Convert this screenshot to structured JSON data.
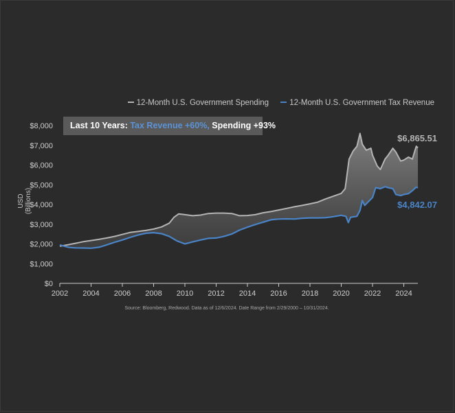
{
  "chart_data": {
    "type": "line",
    "title": "",
    "xlabel": "",
    "ylabel": "USD (Billions)",
    "xlim": [
      2002,
      2024.9
    ],
    "ylim": [
      0,
      8000
    ],
    "x_ticks": [
      "2002",
      "2004",
      "2006",
      "2008",
      "2010",
      "2012",
      "2014",
      "2016",
      "2018",
      "2020",
      "2022",
      "2024"
    ],
    "y_ticks": [
      "$0",
      "$1,000",
      "$2,000",
      "$3,000",
      "$4,000",
      "$5,000",
      "$6,000",
      "$7,000",
      "$8,000"
    ],
    "legend_position": "top-right",
    "shaded_gap_between_series": true,
    "series": [
      {
        "name": "12-Month U.S. Government Spending",
        "color": "#b5b5b5",
        "end_label": "$6,865.51",
        "points": [
          [
            2002.0,
            1880
          ],
          [
            2002.5,
            1950
          ],
          [
            2003.0,
            2030
          ],
          [
            2003.5,
            2110
          ],
          [
            2004.0,
            2170
          ],
          [
            2004.5,
            2230
          ],
          [
            2005.0,
            2300
          ],
          [
            2005.5,
            2380
          ],
          [
            2006.0,
            2480
          ],
          [
            2006.5,
            2580
          ],
          [
            2007.0,
            2630
          ],
          [
            2007.5,
            2680
          ],
          [
            2008.0,
            2750
          ],
          [
            2008.5,
            2860
          ],
          [
            2009.0,
            3050
          ],
          [
            2009.3,
            3350
          ],
          [
            2009.6,
            3520
          ],
          [
            2010.0,
            3480
          ],
          [
            2010.5,
            3430
          ],
          [
            2011.0,
            3460
          ],
          [
            2011.5,
            3540
          ],
          [
            2012.0,
            3560
          ],
          [
            2012.5,
            3560
          ],
          [
            2013.0,
            3540
          ],
          [
            2013.5,
            3430
          ],
          [
            2014.0,
            3440
          ],
          [
            2014.5,
            3480
          ],
          [
            2015.0,
            3580
          ],
          [
            2015.5,
            3640
          ],
          [
            2016.0,
            3720
          ],
          [
            2016.5,
            3800
          ],
          [
            2017.0,
            3880
          ],
          [
            2017.5,
            3950
          ],
          [
            2018.0,
            4030
          ],
          [
            2018.5,
            4120
          ],
          [
            2019.0,
            4280
          ],
          [
            2019.5,
            4420
          ],
          [
            2020.0,
            4560
          ],
          [
            2020.25,
            4800
          ],
          [
            2020.5,
            6300
          ],
          [
            2020.75,
            6700
          ],
          [
            2021.0,
            6950
          ],
          [
            2021.2,
            7600
          ],
          [
            2021.35,
            7050
          ],
          [
            2021.6,
            6750
          ],
          [
            2021.9,
            6850
          ],
          [
            2022.0,
            6500
          ],
          [
            2022.3,
            5950
          ],
          [
            2022.5,
            5770
          ],
          [
            2022.8,
            6300
          ],
          [
            2023.0,
            6500
          ],
          [
            2023.3,
            6850
          ],
          [
            2023.5,
            6650
          ],
          [
            2023.8,
            6200
          ],
          [
            2024.0,
            6250
          ],
          [
            2024.3,
            6400
          ],
          [
            2024.55,
            6300
          ],
          [
            2024.7,
            6700
          ],
          [
            2024.8,
            6950
          ],
          [
            2024.9,
            6865.51
          ]
        ]
      },
      {
        "name": "12-Month U.S. Government Tax Revenue",
        "color": "#4a84c8",
        "end_label": "$4,842.07",
        "points": [
          [
            2002.0,
            1950
          ],
          [
            2002.3,
            1880
          ],
          [
            2002.6,
            1820
          ],
          [
            2003.0,
            1800
          ],
          [
            2003.5,
            1790
          ],
          [
            2004.0,
            1780
          ],
          [
            2004.5,
            1830
          ],
          [
            2005.0,
            1950
          ],
          [
            2005.5,
            2080
          ],
          [
            2006.0,
            2200
          ],
          [
            2006.5,
            2330
          ],
          [
            2007.0,
            2450
          ],
          [
            2007.5,
            2540
          ],
          [
            2008.0,
            2570
          ],
          [
            2008.5,
            2520
          ],
          [
            2009.0,
            2380
          ],
          [
            2009.5,
            2150
          ],
          [
            2010.0,
            2000
          ],
          [
            2010.5,
            2100
          ],
          [
            2011.0,
            2200
          ],
          [
            2011.5,
            2280
          ],
          [
            2012.0,
            2300
          ],
          [
            2012.5,
            2380
          ],
          [
            2013.0,
            2500
          ],
          [
            2013.5,
            2700
          ],
          [
            2014.0,
            2850
          ],
          [
            2014.5,
            2980
          ],
          [
            2015.0,
            3100
          ],
          [
            2015.5,
            3220
          ],
          [
            2016.0,
            3260
          ],
          [
            2016.5,
            3270
          ],
          [
            2017.0,
            3260
          ],
          [
            2017.5,
            3300
          ],
          [
            2018.0,
            3320
          ],
          [
            2018.5,
            3320
          ],
          [
            2019.0,
            3330
          ],
          [
            2019.5,
            3380
          ],
          [
            2020.0,
            3450
          ],
          [
            2020.3,
            3400
          ],
          [
            2020.45,
            3080
          ],
          [
            2020.6,
            3350
          ],
          [
            2021.0,
            3400
          ],
          [
            2021.2,
            3700
          ],
          [
            2021.35,
            4200
          ],
          [
            2021.5,
            3950
          ],
          [
            2022.0,
            4350
          ],
          [
            2022.2,
            4850
          ],
          [
            2022.5,
            4800
          ],
          [
            2022.8,
            4900
          ],
          [
            2023.0,
            4850
          ],
          [
            2023.3,
            4800
          ],
          [
            2023.5,
            4500
          ],
          [
            2023.8,
            4450
          ],
          [
            2024.0,
            4500
          ],
          [
            2024.3,
            4550
          ],
          [
            2024.55,
            4700
          ],
          [
            2024.8,
            4880
          ],
          [
            2024.9,
            4842.07
          ]
        ]
      }
    ]
  },
  "callout": {
    "prefix": "Last 10 Years: ",
    "tax_text": "Tax Revenue +60%,",
    "spending_text": " Spending +93%"
  },
  "source": "Source: Bloomberg, Redwood. Data as of 12/6/2024. Date Range from 2/29/2000 – 10/31/2024."
}
